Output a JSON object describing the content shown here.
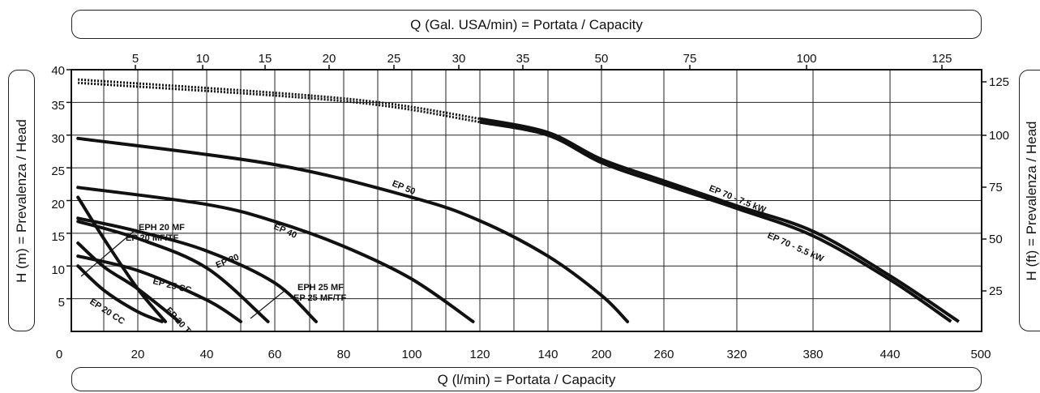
{
  "chart_data": {
    "type": "line",
    "xlabel": "Q (l/min) = Portata / Capacity",
    "ylabel": "H (m) = Prevalenza / Head",
    "x2label": "Q (Gal. USA/min) = Portata / Capacity",
    "y2label": "H (ft) = Prevalenza / Head",
    "x_ticks": [
      "0",
      "20",
      "40",
      "60",
      "80",
      "100",
      "120",
      "140",
      "200",
      "260",
      "320",
      "380",
      "440",
      "500"
    ],
    "x_ticks_top": [
      "5",
      "10",
      "15",
      "20",
      "25",
      "30",
      "35",
      "50",
      "75",
      "100",
      "125"
    ],
    "y_ticks": [
      "40",
      "35",
      "30",
      "25",
      "20",
      "15",
      "10",
      "5"
    ],
    "y2_ticks": [
      "125",
      "100",
      "75",
      "50",
      "25"
    ],
    "ylim": [
      0,
      40
    ],
    "grid": true,
    "series": [
      {
        "name": "EP 20 CC",
        "x": [
          2,
          10,
          20,
          27
        ],
        "y": [
          10,
          6.2,
          3,
          1.5
        ]
      },
      {
        "name": "EP 20 T",
        "x": [
          2,
          10,
          20,
          28
        ],
        "y": [
          20.5,
          14,
          6.5,
          1.5
        ]
      },
      {
        "name": "EP 25 CC",
        "x": [
          2,
          10,
          20,
          32
        ],
        "y": [
          13.5,
          9.8,
          6.5,
          1.5
        ]
      },
      {
        "name": "EPH 20 MF / EP 20 MF/TF",
        "x": [
          2,
          20,
          40,
          50
        ],
        "y": [
          11.5,
          9.3,
          4.8,
          1.5
        ]
      },
      {
        "name": "EP 30",
        "x": [
          2,
          20,
          40,
          58
        ],
        "y": [
          16.8,
          14.2,
          9.7,
          1.5
        ]
      },
      {
        "name": "EPH 25 MF / EP 25 MF/TF",
        "x": [
          2,
          20,
          40,
          60,
          72
        ],
        "y": [
          17.3,
          15.3,
          12.3,
          7.4,
          1.5
        ]
      },
      {
        "name": "EP 40",
        "x": [
          2,
          40,
          60,
          80,
          100,
          118
        ],
        "y": [
          22,
          19.4,
          16.8,
          13,
          8,
          1.5
        ]
      },
      {
        "name": "EP 50",
        "x": [
          2,
          60,
          100,
          120,
          140,
          200,
          225
        ],
        "y": [
          29.5,
          25.5,
          20.5,
          16.9,
          11.5,
          5.5,
          1.5
        ]
      },
      {
        "name": "EP 70 - 7.5 kW",
        "x": [
          2,
          80,
          120,
          140,
          200,
          260,
          320,
          380,
          440,
          485
        ],
        "y": [
          38.5,
          35.6,
          32.5,
          30.4,
          26.3,
          23,
          19.2,
          15.3,
          8.5,
          1.5
        ]
      },
      {
        "name": "EP 70 - 5.5 kW",
        "x": [
          2,
          80,
          120,
          140,
          200,
          260,
          320,
          380,
          440,
          480
        ],
        "y": [
          38,
          35.2,
          32,
          30,
          25.8,
          22.5,
          18.8,
          14.6,
          7.9,
          1.5
        ]
      }
    ],
    "labels": [
      {
        "series": 0,
        "text": "EP 20 CC"
      },
      {
        "series": 1,
        "text": "EP 20 T"
      },
      {
        "series": 2,
        "text": "EP 25 CC"
      },
      {
        "series": 3,
        "text": "EPH 20 MF"
      },
      {
        "series": 3,
        "text": "EP 20 MF/TF"
      },
      {
        "series": 4,
        "text": "EP 30"
      },
      {
        "series": 5,
        "text": "EPH 25 MF"
      },
      {
        "series": 5,
        "text": "EP 25 MF/TF"
      },
      {
        "series": 6,
        "text": "EP 40"
      },
      {
        "series": 7,
        "text": "EP 50"
      },
      {
        "series": 8,
        "text": "EP 70 - 7.5 kW"
      },
      {
        "series": 9,
        "text": "EP 70 - 5.5 kW"
      }
    ]
  }
}
